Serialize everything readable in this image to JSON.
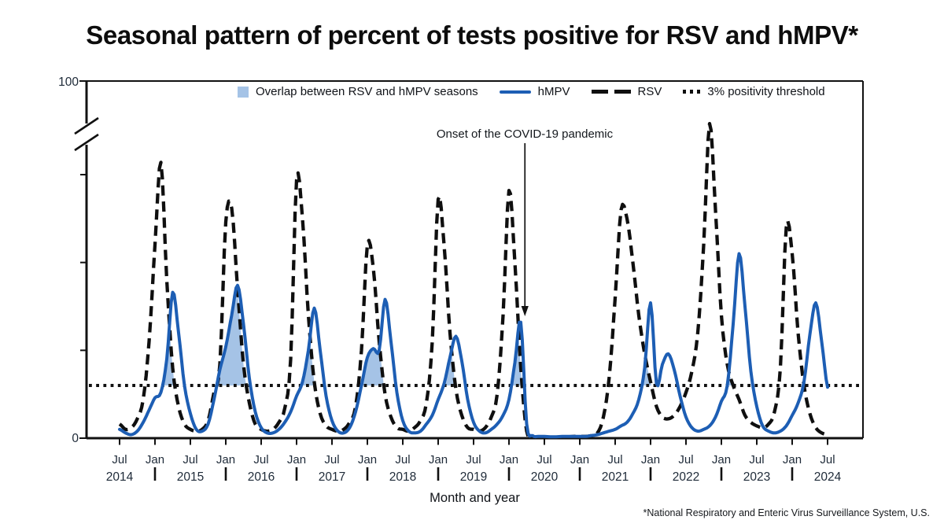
{
  "title": "Seasonal pattern of percent of tests positive for RSV and hMPV*",
  "x_label": "Month and year",
  "footnote": "*National Respiratory and Enteric Virus Surveillance System, U.S.",
  "annotation": {
    "text": "Onset of the COVID-19 pandemic"
  },
  "legend": {
    "overlap": "Overlap between RSV and hMPV seasons",
    "hmpv": "hMPV",
    "rsv": "RSV",
    "threshold": "3% positivity threshold"
  },
  "colors": {
    "hmpv_line": "#1d5eb4",
    "rsv_line": "#0f0f0f",
    "overlap_fill": "#a5c3e6",
    "axis": "#111111",
    "axis_text": "#1e2a38"
  },
  "chart_data": {
    "type": "line",
    "title": "Seasonal pattern of percent of tests positive for RSV and hMPV",
    "x_unit": "month",
    "x_start": "2014-07",
    "x_end": "2024-07",
    "ylabel_top_tick": "100",
    "ylabel_bottom_tick": "0",
    "ylim": [
      0,
      100
    ],
    "y_axis_break_between": [
      18,
      100
    ],
    "y_unlabeled_ticks": [
      5,
      10,
      15
    ],
    "threshold_percent": 3,
    "grid": false,
    "legend_position": "top-center",
    "x_ticks": [
      {
        "m": 0,
        "label": "Jul"
      },
      {
        "m": 6,
        "label": "Jan"
      },
      {
        "m": 12,
        "label": "Jul"
      },
      {
        "m": 18,
        "label": "Jan"
      },
      {
        "m": 24,
        "label": "Jul"
      },
      {
        "m": 30,
        "label": "Jan"
      },
      {
        "m": 36,
        "label": "Jul"
      },
      {
        "m": 42,
        "label": "Jan"
      },
      {
        "m": 48,
        "label": "Jul"
      },
      {
        "m": 54,
        "label": "Jan"
      },
      {
        "m": 60,
        "label": "Jul"
      },
      {
        "m": 66,
        "label": "Jan"
      },
      {
        "m": 72,
        "label": "Jul"
      },
      {
        "m": 78,
        "label": "Jan"
      },
      {
        "m": 84,
        "label": "Jul"
      },
      {
        "m": 90,
        "label": "Jan"
      },
      {
        "m": 96,
        "label": "Jul"
      },
      {
        "m": 102,
        "label": "Jan"
      },
      {
        "m": 108,
        "label": "Jul"
      },
      {
        "m": 114,
        "label": "Jan"
      },
      {
        "m": 120,
        "label": "Jul"
      }
    ],
    "year_labels": [
      {
        "m": 0,
        "label": "2014"
      },
      {
        "m": 12,
        "label": "2015"
      },
      {
        "m": 24,
        "label": "2016"
      },
      {
        "m": 36,
        "label": "2017"
      },
      {
        "m": 48,
        "label": "2018"
      },
      {
        "m": 60,
        "label": "2019"
      },
      {
        "m": 72,
        "label": "2020"
      },
      {
        "m": 84,
        "label": "2021"
      },
      {
        "m": 96,
        "label": "2022"
      },
      {
        "m": 108,
        "label": "2023"
      },
      {
        "m": 120,
        "label": "2024"
      }
    ],
    "year_separators_m": [
      6,
      18,
      30,
      42,
      54,
      66,
      78,
      90,
      102,
      114
    ],
    "annotation_month": 68.7,
    "series": [
      {
        "name": "hMPV",
        "style": "solid-blue",
        "values": [
          0.5,
          0.3,
          0.2,
          0.4,
          0.9,
          1.6,
          2.3,
          2.6,
          4.5,
          8.3,
          6.0,
          3.0,
          1.4,
          0.5,
          0.4,
          0.8,
          2.2,
          3.9,
          5.2,
          7.0,
          8.7,
          6.5,
          3.4,
          1.5,
          0.6,
          0.3,
          0.3,
          0.5,
          0.9,
          1.5,
          2.4,
          3.2,
          5.0,
          7.4,
          5.0,
          2.4,
          1.0,
          0.4,
          0.3,
          0.6,
          1.5,
          3.0,
          4.6,
          5.1,
          5.0,
          7.9,
          5.5,
          2.6,
          1.0,
          0.4,
          0.3,
          0.4,
          0.8,
          1.3,
          2.2,
          3.1,
          4.6,
          5.8,
          4.4,
          2.2,
          0.9,
          0.4,
          0.3,
          0.5,
          0.8,
          1.3,
          2.2,
          4.3,
          6.6,
          0.8,
          0.15,
          0.1,
          0.1,
          0.08,
          0.08,
          0.1,
          0.1,
          0.1,
          0.1,
          0.1,
          0.15,
          0.2,
          0.3,
          0.4,
          0.5,
          0.7,
          0.9,
          1.4,
          2.2,
          4.0,
          7.7,
          3.1,
          4.2,
          4.8,
          3.9,
          2.4,
          1.2,
          0.6,
          0.4,
          0.5,
          0.7,
          1.2,
          2.1,
          3.0,
          6.5,
          10.5,
          7.5,
          3.8,
          1.8,
          0.7,
          0.4,
          0.3,
          0.4,
          0.7,
          1.3,
          2.0,
          3.2,
          5.9,
          7.7,
          5.5,
          2.9
        ]
      },
      {
        "name": "RSV",
        "style": "dashed-black",
        "values": [
          0.8,
          0.5,
          0.6,
          1.1,
          2.2,
          5.5,
          11.0,
          15.7,
          9.0,
          4.0,
          1.8,
          0.8,
          0.5,
          0.4,
          0.5,
          1.0,
          2.6,
          4.2,
          12.3,
          13.1,
          8.5,
          4.2,
          2.0,
          0.8,
          0.5,
          0.4,
          0.5,
          0.9,
          1.7,
          4.5,
          14.7,
          12.5,
          7.0,
          3.2,
          1.4,
          0.7,
          0.5,
          0.4,
          0.5,
          0.9,
          1.8,
          5.0,
          11.0,
          9.7,
          5.5,
          2.5,
          1.2,
          0.6,
          0.5,
          0.4,
          0.6,
          1.0,
          2.0,
          5.5,
          13.6,
          11.0,
          6.0,
          2.8,
          1.3,
          0.6,
          0.5,
          0.4,
          0.6,
          1.2,
          2.5,
          7.0,
          14.1,
          10.0,
          4.0,
          0.4,
          0.1,
          0.05,
          0.05,
          0.05,
          0.05,
          0.08,
          0.08,
          0.1,
          0.1,
          0.1,
          0.15,
          0.3,
          1.2,
          3.5,
          8.0,
          13.0,
          12.5,
          10.0,
          7.0,
          4.8,
          3.2,
          1.8,
          1.2,
          1.1,
          1.3,
          1.8,
          2.6,
          3.8,
          6.0,
          11.0,
          17.9,
          13.0,
          7.0,
          4.2,
          3.0,
          2.2,
          1.3,
          0.9,
          0.7,
          0.6,
          0.8,
          1.5,
          4.0,
          12.0,
          10.5,
          6.0,
          3.0,
          1.4,
          0.6,
          0.3,
          0.2
        ]
      }
    ]
  }
}
